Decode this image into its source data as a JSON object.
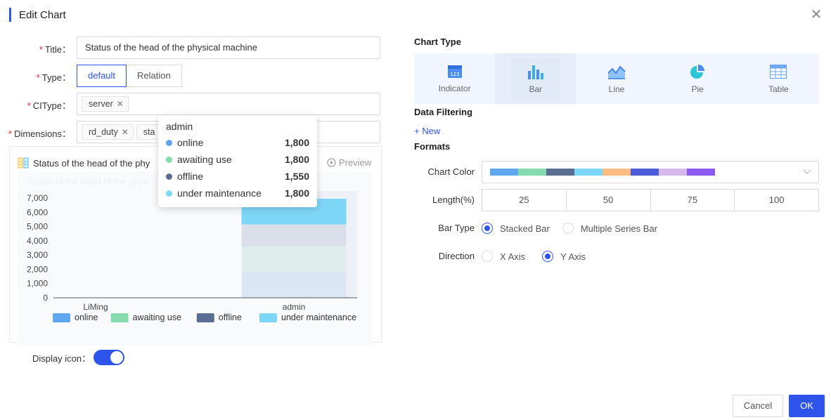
{
  "header": {
    "title": "Edit Chart",
    "close_icon": "close-icon"
  },
  "form": {
    "title_label": "Title",
    "title_value": "Status of the head of the physical machine",
    "type_label": "Type",
    "type_options": [
      "default",
      "Relation"
    ],
    "type_selected": "default",
    "citype_label": "CIType",
    "citype_tags": [
      "server"
    ],
    "dimensions_label": "Dimensions",
    "dimension_tags": [
      "rd_duty",
      "sta"
    ],
    "display_icon_label": "Display icon",
    "display_icon_on": true
  },
  "preview": {
    "title": "Status of the head of the phy",
    "preview_label": "Preview",
    "faded_title": "Status of the head of the phys"
  },
  "tooltip": {
    "title": "admin",
    "rows": [
      {
        "name": "online",
        "value": "1,800",
        "color": "#5ea6ef"
      },
      {
        "name": "awaiting use",
        "value": "1,800",
        "color": "#85dbae"
      },
      {
        "name": "offline",
        "value": "1,550",
        "color": "#5a6e94"
      },
      {
        "name": "under maintenance",
        "value": "1,800",
        "color": "#7dd6f6"
      }
    ]
  },
  "chart_data": {
    "type": "bar",
    "stacked": true,
    "categories": [
      "LiMing",
      "admin"
    ],
    "series": [
      {
        "name": "online",
        "values": [
          0,
          1800
        ],
        "color": "#5ea6ef"
      },
      {
        "name": "awaiting use",
        "values": [
          0,
          1800
        ],
        "color": "#85dbae"
      },
      {
        "name": "offline",
        "values": [
          0,
          1550
        ],
        "color": "#5a6e94"
      },
      {
        "name": "under maintenance",
        "values": [
          0,
          1800
        ],
        "color": "#7dd6f6"
      }
    ],
    "yticks": [
      "0",
      "1,000",
      "2,000",
      "3,000",
      "4,000",
      "5,000",
      "6,000",
      "7,000"
    ],
    "ylim": [
      0,
      7000
    ],
    "highlighted_category": "admin"
  },
  "right": {
    "chart_type_title": "Chart Type",
    "chart_types": [
      {
        "label": "Indicator",
        "icon": "indicator-icon"
      },
      {
        "label": "Bar",
        "icon": "bar-chart-icon"
      },
      {
        "label": "Line",
        "icon": "line-chart-icon"
      },
      {
        "label": "Pie",
        "icon": "pie-chart-icon"
      },
      {
        "label": "Table",
        "icon": "table-icon"
      }
    ],
    "chart_type_selected": "Bar",
    "data_filtering_title": "Data Filtering",
    "new_link": "+ New",
    "formats_title": "Formats",
    "chart_color_label": "Chart Color",
    "palette": [
      "#5ea6ef",
      "#85dbae",
      "#5a6e94",
      "#7dd6f6",
      "#fcbb80",
      "#4b5cd6",
      "#d6b8ec",
      "#8c5cf1"
    ],
    "length_label": "Length(%)",
    "length_options": [
      "25",
      "50",
      "75",
      "100"
    ],
    "bar_type_label": "Bar Type",
    "bar_type_options": [
      "Stacked Bar",
      "Multiple Series Bar"
    ],
    "bar_type_selected": "Stacked Bar",
    "direction_label": "Direction",
    "direction_options": [
      "X Axis",
      "Y Axis"
    ],
    "direction_selected": "Y Axis"
  },
  "footer": {
    "cancel_label": "Cancel",
    "ok_label": "OK"
  }
}
